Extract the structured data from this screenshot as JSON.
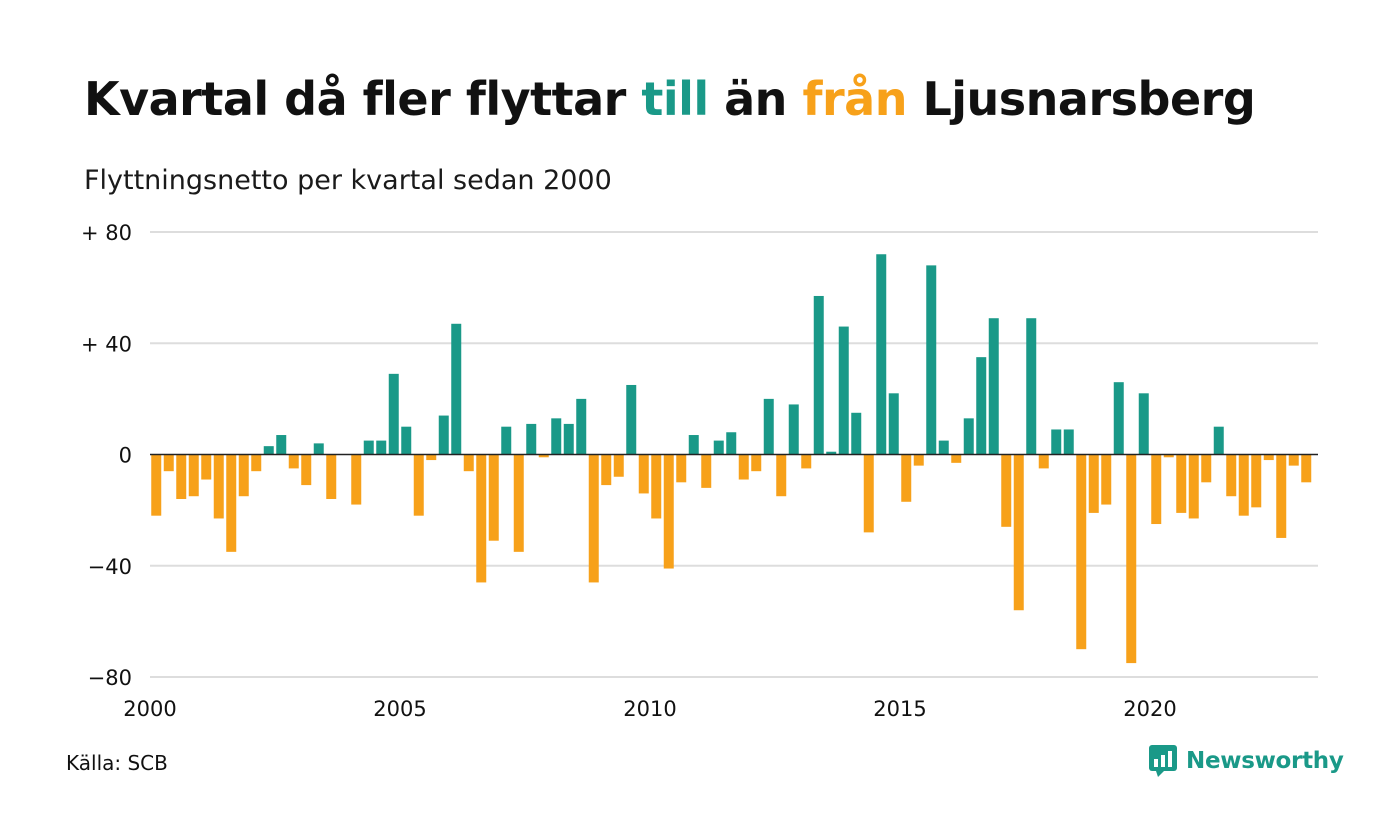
{
  "title": {
    "part1": "Kvartal då fler flyttar ",
    "word_in": "till",
    "part2": " än ",
    "word_out": "från",
    "part3": " Ljusnarsberg"
  },
  "subtitle": "Flyttningsnetto per kvartal sedan 2000",
  "source": "Källa: SCB",
  "brand": {
    "name": "Newsworthy",
    "icon": "newsworthy-logo-icon"
  },
  "colors": {
    "positive": "#1a9988",
    "negative": "#f7a11a",
    "grid": "#dddddd",
    "zero_line": "#222222",
    "text": "#111111"
  },
  "chart_data": {
    "type": "bar",
    "title": "Kvartal då fler flyttar till än från Ljusnarsberg",
    "subtitle": "Flyttningsnetto per kvartal sedan 2000",
    "xlabel": "",
    "ylabel": "",
    "start_year": 2000,
    "quarters_per_year": 4,
    "ylim": [
      -80,
      80
    ],
    "yticks": [
      {
        "value": 80,
        "label": "+ 80"
      },
      {
        "value": 40,
        "label": "+ 40"
      },
      {
        "value": 0,
        "label": "0"
      },
      {
        "value": -40,
        "label": "−40"
      },
      {
        "value": -80,
        "label": "−80"
      }
    ],
    "xticks": [
      "2000",
      "2005",
      "2010",
      "2015",
      "2020"
    ],
    "grid": true,
    "series": [
      {
        "values": [
          -22,
          -6,
          -16,
          -15,
          -9,
          -23,
          -35,
          -15,
          -6,
          3,
          7,
          -5,
          -11,
          4,
          -16,
          0,
          -18,
          5,
          5,
          29,
          10,
          -22,
          -2,
          14,
          47,
          -6,
          -46,
          -31,
          10,
          -35,
          11,
          -1,
          13,
          11,
          20,
          -46,
          -11,
          -8,
          25,
          -14,
          -23,
          -41,
          -10,
          7,
          -12,
          5,
          8,
          -9,
          -6,
          20,
          -15,
          18,
          -5,
          57,
          1,
          46,
          15,
          -28,
          72,
          22,
          -17,
          -4,
          68,
          5,
          -3,
          13,
          35,
          49,
          -26,
          -56,
          49,
          -5,
          9,
          9,
          -70,
          -21,
          -18,
          26,
          -75,
          22,
          -25,
          -1,
          -21,
          -23,
          -10,
          10,
          -15,
          -22,
          -19,
          -2,
          -30,
          -4,
          -10
        ]
      }
    ]
  }
}
